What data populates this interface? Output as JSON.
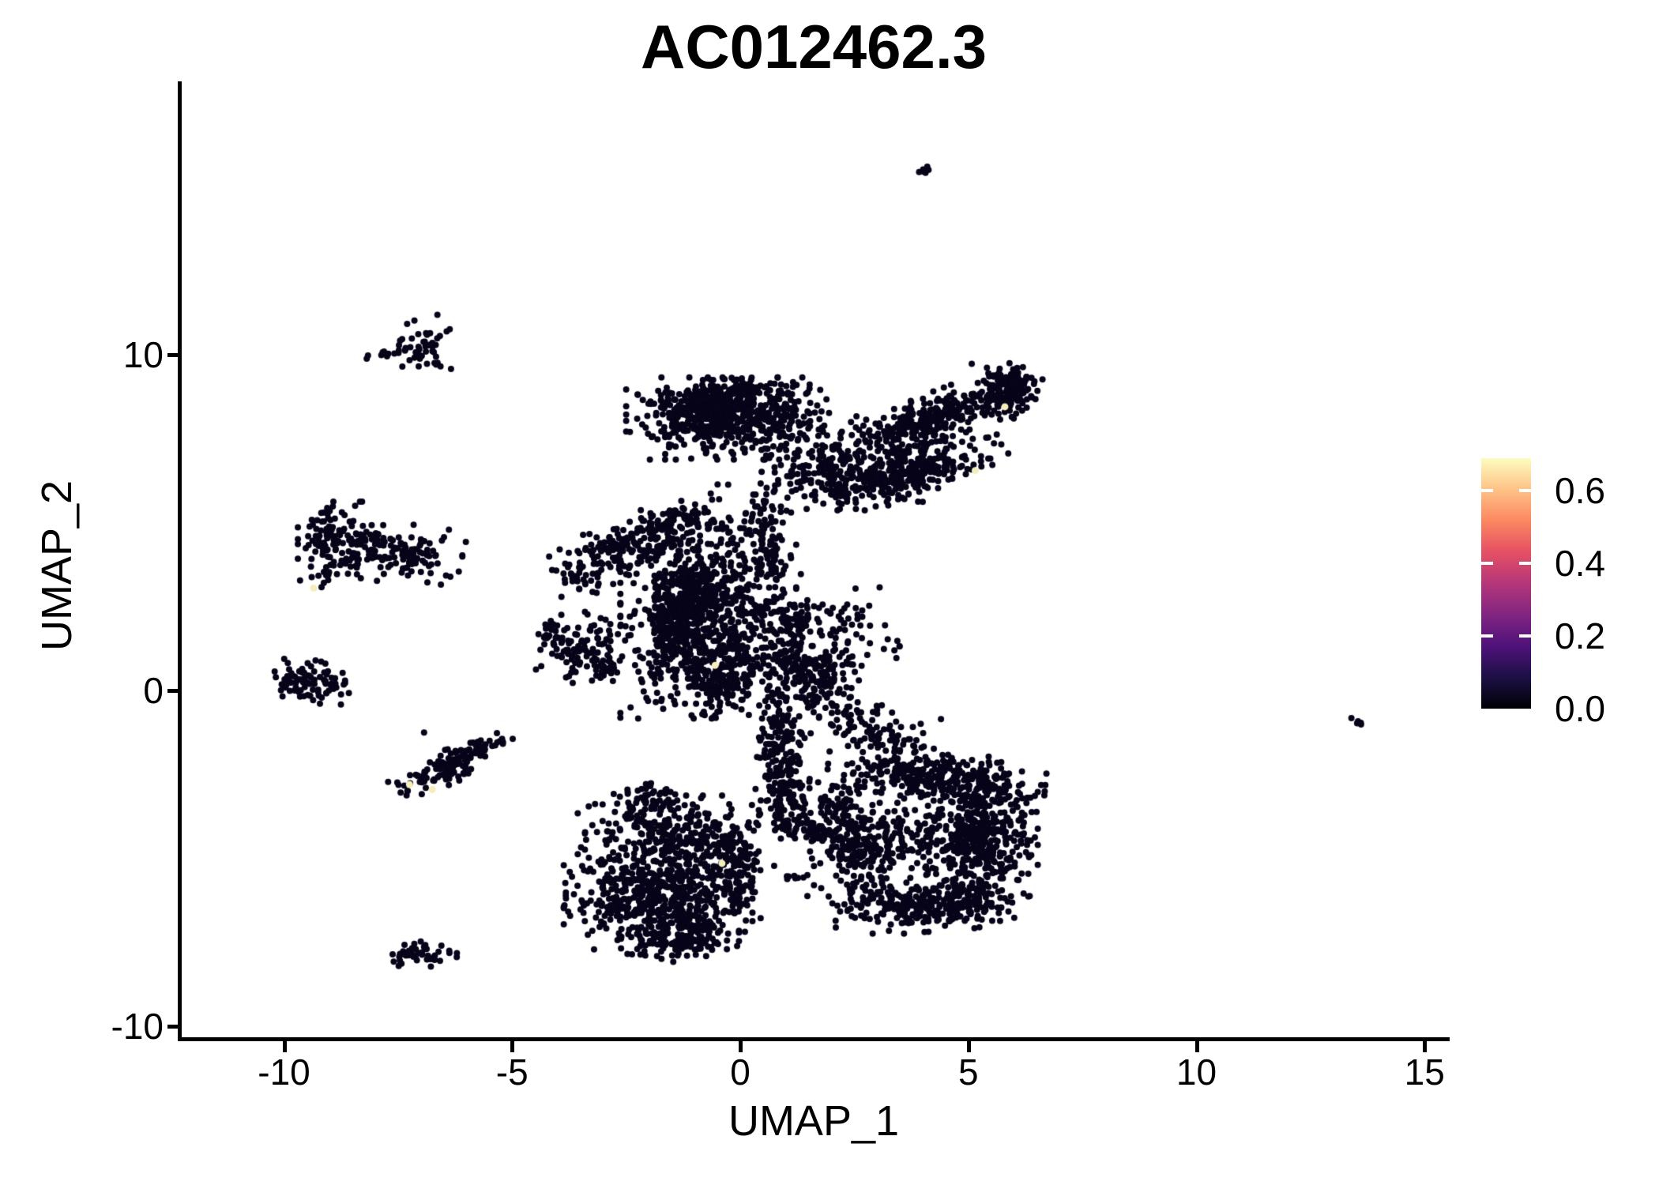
{
  "chart_data": {
    "type": "scatter",
    "title": "AC012462.3",
    "xlabel": "UMAP_1",
    "ylabel": "UMAP_2",
    "x_ticks": [
      {
        "label": "-10",
        "value": -10
      },
      {
        "label": "-5",
        "value": -5
      },
      {
        "label": "0",
        "value": 0
      },
      {
        "label": "5",
        "value": 5
      },
      {
        "label": "10",
        "value": 10
      },
      {
        "label": "15",
        "value": 15
      }
    ],
    "y_ticks": [
      {
        "label": "10",
        "value": 10
      },
      {
        "label": "0",
        "value": 0
      },
      {
        "label": "-10",
        "value": -10
      }
    ],
    "xlim": [
      -12.3,
      15.6
    ],
    "ylim": [
      -10.4,
      18.1
    ],
    "grid": false,
    "legend_position": "right",
    "colorbar": {
      "labels": [
        {
          "label": "0.6",
          "value": 0.6
        },
        {
          "label": "0.4",
          "value": 0.4
        },
        {
          "label": "0.2",
          "value": 0.2
        },
        {
          "label": "0.0",
          "value": 0.0
        }
      ],
      "min_value": 0.0,
      "max_value": 0.69,
      "palette": "magma",
      "gradient_bottom_to_top": [
        "#000004",
        "#1c1044",
        "#4f127b",
        "#812581",
        "#b5367a",
        "#e55064",
        "#fb8761",
        "#fec287",
        "#fcfdbf"
      ]
    },
    "point_color": "#07041a",
    "point_radius": 4,
    "highlight_color": "#f5edba",
    "clusters_format": "center_x, center_y, sd_x, sd_y, rotation_deg, n_points",
    "clusters": [
      [
        4.1,
        15.45,
        0.1,
        0.12,
        0,
        7
      ],
      [
        -6.95,
        10.2,
        0.26,
        0.42,
        0,
        46
      ],
      [
        -7.65,
        10.05,
        0.33,
        0.07,
        5,
        13
      ],
      [
        -8.85,
        4.45,
        0.36,
        0.5,
        0,
        120
      ],
      [
        -7.55,
        4.1,
        0.62,
        0.38,
        -10,
        130
      ],
      [
        -9.1,
        3.4,
        0.12,
        0.18,
        0,
        8
      ],
      [
        -9.45,
        0.3,
        0.4,
        0.26,
        -15,
        85
      ],
      [
        -3.45,
        1.4,
        0.46,
        0.5,
        0,
        110
      ],
      [
        -4.15,
        1.6,
        0.18,
        0.22,
        0,
        20
      ],
      [
        -2.95,
        0.6,
        0.22,
        0.18,
        0,
        18
      ],
      [
        -6.35,
        -2.25,
        0.6,
        0.2,
        32,
        120
      ],
      [
        -5.55,
        -1.6,
        0.28,
        0.13,
        32,
        12
      ],
      [
        -7.0,
        -7.85,
        0.36,
        0.16,
        0,
        46
      ],
      [
        13.55,
        -0.95,
        0.12,
        0.04,
        -38,
        6
      ],
      [
        -0.15,
        8.1,
        1.0,
        0.52,
        0,
        480
      ],
      [
        -0.75,
        8.4,
        0.42,
        0.36,
        0,
        220
      ],
      [
        0.1,
        8.95,
        0.45,
        0.18,
        0,
        70
      ],
      [
        -1.95,
        4.6,
        0.95,
        0.34,
        31,
        240
      ],
      [
        -3.55,
        3.4,
        0.3,
        0.26,
        0,
        36
      ],
      [
        -0.7,
        2.1,
        0.82,
        1.25,
        0,
        750
      ],
      [
        -1.3,
        2.3,
        0.3,
        1.15,
        -12,
        260
      ],
      [
        -0.3,
        0.25,
        0.48,
        0.45,
        0,
        130
      ],
      [
        0.55,
        4.4,
        0.24,
        0.75,
        0,
        110
      ],
      [
        1.1,
        1.7,
        0.28,
        0.75,
        0,
        110
      ],
      [
        1.6,
        0.35,
        0.42,
        0.48,
        0,
        150
      ],
      [
        0.8,
        -1.8,
        0.26,
        0.75,
        0,
        130
      ],
      [
        1.05,
        -3.2,
        0.28,
        0.65,
        0,
        110
      ],
      [
        1.9,
        -4.25,
        0.48,
        0.26,
        -12,
        80
      ],
      [
        1.7,
        6.7,
        0.55,
        0.55,
        0,
        130
      ],
      [
        2.9,
        6.35,
        0.65,
        0.42,
        0,
        150
      ],
      [
        4.3,
        8.15,
        1.0,
        0.3,
        27,
        260
      ],
      [
        5.85,
        8.9,
        0.33,
        0.38,
        0,
        120
      ],
      [
        6.05,
        9.3,
        0.14,
        0.13,
        0,
        25
      ],
      [
        3.95,
        6.5,
        0.85,
        0.28,
        21,
        200
      ],
      [
        3.6,
        7.35,
        0.85,
        0.45,
        15,
        110
      ],
      [
        3.0,
        -1.3,
        0.75,
        0.33,
        -33,
        110
      ],
      [
        2.2,
        1.8,
        0.55,
        0.65,
        0,
        70
      ],
      [
        -1.8,
        -6.2,
        0.88,
        0.72,
        0,
        600
      ],
      [
        -1.4,
        -4.35,
        0.92,
        0.52,
        0,
        280
      ],
      [
        -2.05,
        -3.25,
        0.33,
        0.27,
        38,
        60
      ],
      [
        -0.12,
        -5.3,
        0.28,
        0.75,
        0,
        110
      ],
      [
        -1.25,
        -7.45,
        0.52,
        0.27,
        0,
        110
      ],
      [
        4.3,
        -2.6,
        1.02,
        0.3,
        -4,
        260
      ],
      [
        5.3,
        -4.3,
        0.52,
        0.92,
        0,
        460
      ],
      [
        4.2,
        -6.4,
        0.92,
        0.33,
        6,
        260
      ],
      [
        2.6,
        -4.8,
        0.48,
        0.82,
        0,
        200
      ],
      [
        3.9,
        -4.5,
        0.55,
        0.6,
        0,
        110
      ],
      [
        2.05,
        -3.45,
        0.28,
        0.28,
        0,
        45
      ],
      [
        1.15,
        -5.55,
        0.18,
        0.1,
        0,
        7
      ]
    ],
    "extra_points": [
      [
        -10.05,
        0.18
      ],
      [
        -8.75,
        -0.12
      ],
      [
        -6.93,
        -1.25
      ],
      [
        -5.22,
        -1.44
      ],
      [
        -6.24,
        -1.8
      ],
      [
        -6.55,
        -7.6
      ],
      [
        4.4,
        -0.85
      ],
      [
        2.6,
        0.3
      ]
    ],
    "highlight_points": [
      {
        "x": -9.35,
        "y": 3.05,
        "value": 0.65
      },
      {
        "x": -7.25,
        "y": -2.8,
        "value": 0.65
      },
      {
        "x": -6.75,
        "y": -2.95,
        "value": 0.65
      },
      {
        "x": -0.55,
        "y": 0.75,
        "value": 0.65
      },
      {
        "x": -0.4,
        "y": -5.15,
        "value": 0.65
      },
      {
        "x": 5.8,
        "y": 8.45,
        "value": 0.65
      },
      {
        "x": 5.15,
        "y": 6.55,
        "value": 0.65
      }
    ]
  }
}
